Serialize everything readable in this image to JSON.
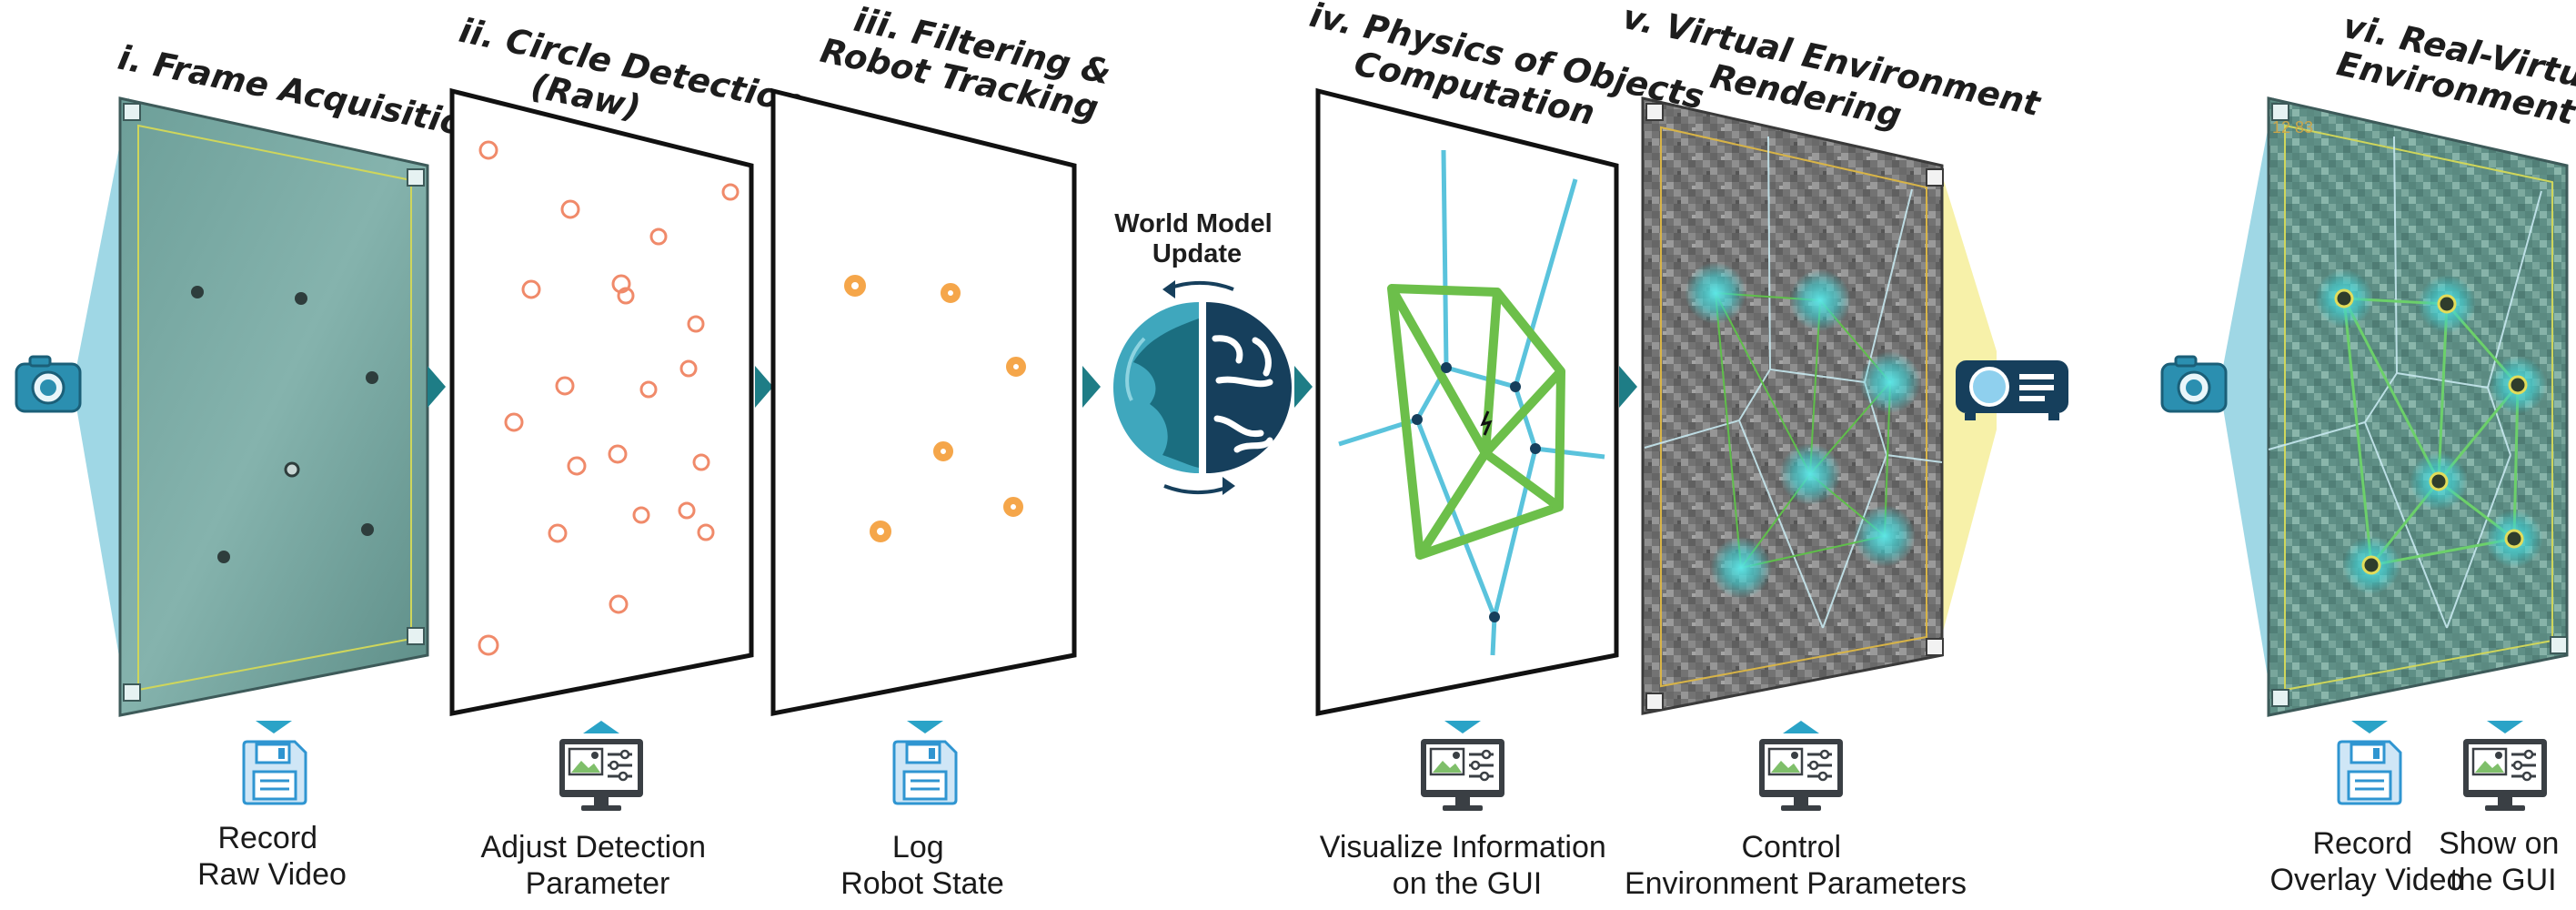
{
  "pipeline": {
    "stages": [
      {
        "title": "i. Frame Acquisition",
        "caption": [
          "Record",
          "Raw Video"
        ],
        "caption_icon": "floppy-disk-icon",
        "arrow": "down"
      },
      {
        "title": [
          "ii. Circle Detection",
          "(Raw)"
        ],
        "caption": [
          "Adjust Detection",
          "Parameter"
        ],
        "caption_icon": "monitor-settings-icon",
        "arrow": "up"
      },
      {
        "title": [
          "iii. Filtering &",
          "Robot Tracking"
        ],
        "caption": [
          "Log",
          "Robot State"
        ],
        "caption_icon": "floppy-disk-icon",
        "arrow": "down"
      },
      {
        "title": [
          "iv. Physics of Objects",
          "Computation"
        ],
        "caption": [
          "Visualize Information",
          "on the GUI"
        ],
        "caption_icon": "monitor-settings-icon",
        "arrow": "down"
      },
      {
        "title": [
          "v. Virtual Environment",
          "Rendering"
        ],
        "caption": [
          "Control",
          "Environment Parameters"
        ],
        "caption_icon": "monitor-settings-icon",
        "arrow": "up"
      },
      {
        "title": [
          "vi. Real-Virtual",
          "Environment"
        ],
        "captions": [
          {
            "lines": [
              "Record",
              "Overlay Video"
            ],
            "icon": "floppy-disk-icon",
            "arrow": "down"
          },
          {
            "lines": [
              "Show on",
              "the GUI"
            ],
            "icon": "monitor-settings-icon",
            "arrow": "down"
          }
        ]
      }
    ],
    "world_model": {
      "label": [
        "World Model",
        "Update"
      ],
      "icon": "globe-brain-icon"
    },
    "badge_text": "12  83",
    "colors": {
      "teal": "#1e7d86",
      "light_blue": "#6cc5d8",
      "arrow_blue": "#2aa3c7",
      "orange": "#f08a6a",
      "robot_orange": "#f5a64a",
      "green": "#6cbf4a",
      "dark_navy": "#15455c",
      "yellow_beam": "#f6ef9a"
    }
  }
}
